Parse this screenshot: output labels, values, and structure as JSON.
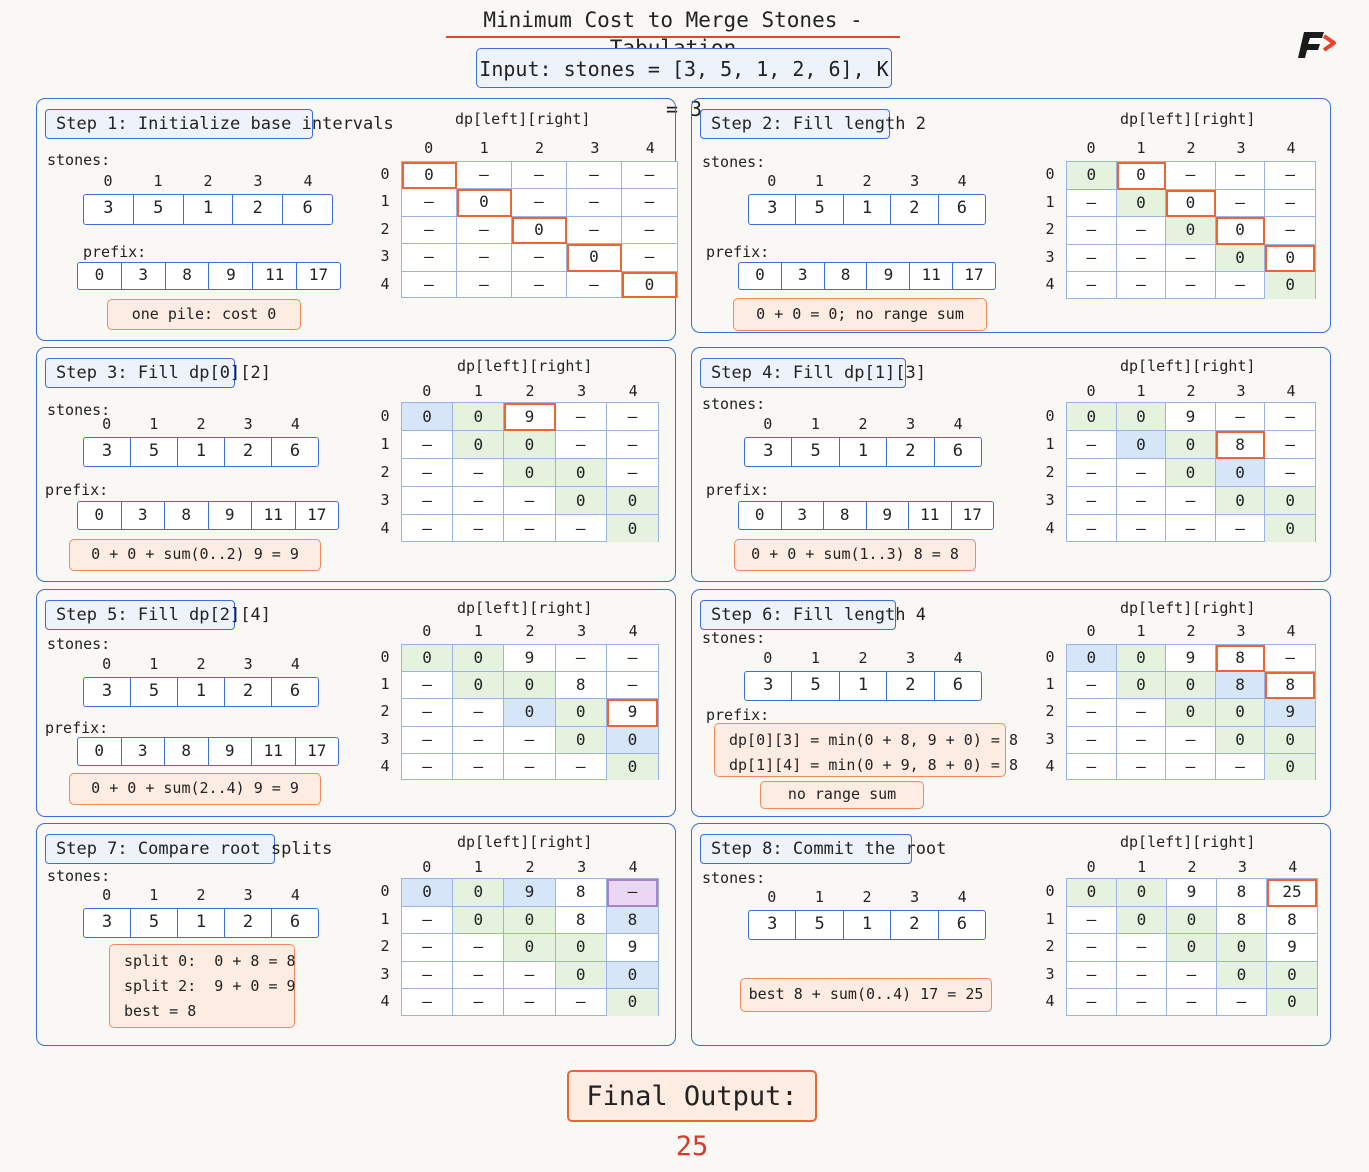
{
  "title": "Minimum Cost to Merge Stones - Tabulation",
  "input": "Input: stones = [3, 5, 1, 2, 6], K = 3",
  "labels": {
    "stones": "stones:",
    "prefix": "prefix:",
    "dp_title": "dp[left][right]"
  },
  "indices": [
    "0",
    "1",
    "2",
    "3",
    "4"
  ],
  "prefix_indices": [
    "0",
    "1",
    "2",
    "3",
    "4",
    "5"
  ],
  "stones": [
    "3",
    "5",
    "1",
    "2",
    "6"
  ],
  "prefix": [
    "0",
    "3",
    "8",
    "9",
    "11",
    "17"
  ],
  "colors": {
    "accent_blue": "#3d6fd6",
    "accent_orange": "#ec6535",
    "cell_green": "#e5f2de",
    "cell_blue": "#d7e5f8",
    "cell_purple": "#ead8f3",
    "final_red": "#d63a2a"
  },
  "steps": [
    {
      "label": "Step 1: Initialize base intervals",
      "notes": [
        "one pile: cost 0"
      ],
      "grid": [
        [
          "0",
          "–",
          "–",
          "–",
          "–"
        ],
        [
          "–",
          "0",
          "–",
          "–",
          "–"
        ],
        [
          "–",
          "–",
          "0",
          "–",
          "–"
        ],
        [
          "–",
          "–",
          "–",
          "0",
          "–"
        ],
        [
          "–",
          "–",
          "–",
          "–",
          "0"
        ]
      ]
    },
    {
      "label": "Step 2: Fill length 2",
      "notes": [
        "0 + 0 = 0; no range sum"
      ],
      "grid": [
        [
          "0",
          "0",
          "–",
          "–",
          "–"
        ],
        [
          "–",
          "0",
          "0",
          "–",
          "–"
        ],
        [
          "–",
          "–",
          "0",
          "0",
          "–"
        ],
        [
          "–",
          "–",
          "–",
          "0",
          "0"
        ],
        [
          "–",
          "–",
          "–",
          "–",
          "0"
        ]
      ]
    },
    {
      "label": "Step 3: Fill dp[0][2]",
      "notes": [
        "0 + 0 + sum(0..2) 9 = 9"
      ],
      "grid": [
        [
          "0",
          "0",
          "9",
          "–",
          "–"
        ],
        [
          "–",
          "0",
          "0",
          "–",
          "–"
        ],
        [
          "–",
          "–",
          "0",
          "0",
          "–"
        ],
        [
          "–",
          "–",
          "–",
          "0",
          "0"
        ],
        [
          "–",
          "–",
          "–",
          "–",
          "0"
        ]
      ]
    },
    {
      "label": "Step 4: Fill dp[1][3]",
      "notes": [
        "0 + 0 + sum(1..3) 8 = 8"
      ],
      "grid": [
        [
          "0",
          "0",
          "9",
          "–",
          "–"
        ],
        [
          "–",
          "0",
          "0",
          "8",
          "–"
        ],
        [
          "–",
          "–",
          "0",
          "0",
          "–"
        ],
        [
          "–",
          "–",
          "–",
          "0",
          "0"
        ],
        [
          "–",
          "–",
          "–",
          "–",
          "0"
        ]
      ]
    },
    {
      "label": "Step 5: Fill dp[2][4]",
      "notes": [
        "0 + 0 + sum(2..4) 9 = 9"
      ],
      "grid": [
        [
          "0",
          "0",
          "9",
          "–",
          "–"
        ],
        [
          "–",
          "0",
          "0",
          "8",
          "–"
        ],
        [
          "–",
          "–",
          "0",
          "0",
          "9"
        ],
        [
          "–",
          "–",
          "–",
          "0",
          "0"
        ],
        [
          "–",
          "–",
          "–",
          "–",
          "0"
        ]
      ]
    },
    {
      "label": "Step 6: Fill length 4",
      "notes": [
        "dp[0][3] = min(0 + 8, 9 + 0) = 8\ndp[1][4] = min(0 + 9, 8 + 0) = 8",
        "no range sum"
      ],
      "grid": [
        [
          "0",
          "0",
          "9",
          "8",
          "–"
        ],
        [
          "–",
          "0",
          "0",
          "8",
          "8"
        ],
        [
          "–",
          "–",
          "0",
          "0",
          "9"
        ],
        [
          "–",
          "–",
          "–",
          "0",
          "0"
        ],
        [
          "–",
          "–",
          "–",
          "–",
          "0"
        ]
      ]
    },
    {
      "label": "Step 7: Compare root splits",
      "notes": [
        "split 0:  0 + 8 = 8\nsplit 2:  9 + 0 = 9\nbest = 8"
      ],
      "grid": [
        [
          "0",
          "0",
          "9",
          "8",
          "–"
        ],
        [
          "–",
          "0",
          "0",
          "8",
          "8"
        ],
        [
          "–",
          "–",
          "0",
          "0",
          "9"
        ],
        [
          "–",
          "–",
          "–",
          "0",
          "0"
        ],
        [
          "–",
          "–",
          "–",
          "–",
          "0"
        ]
      ]
    },
    {
      "label": "Step 8: Commit the root",
      "notes": [
        "best 8 + sum(0..4) 17 = 25"
      ],
      "grid": [
        [
          "0",
          "0",
          "9",
          "8",
          "25"
        ],
        [
          "–",
          "0",
          "0",
          "8",
          "8"
        ],
        [
          "–",
          "–",
          "0",
          "0",
          "9"
        ],
        [
          "–",
          "–",
          "–",
          "0",
          "0"
        ],
        [
          "–",
          "–",
          "–",
          "–",
          "0"
        ]
      ]
    }
  ],
  "final": {
    "label": "Final Output:",
    "value": "25"
  }
}
